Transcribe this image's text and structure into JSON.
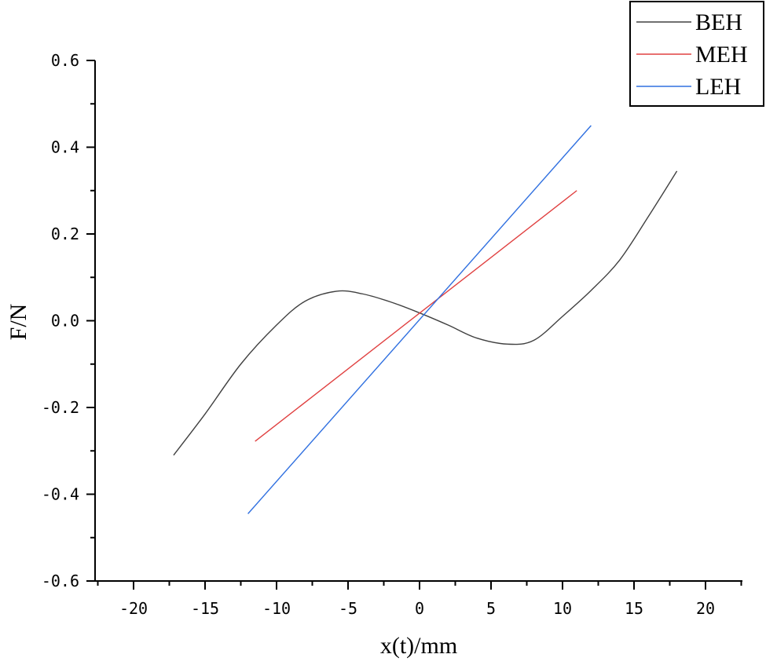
{
  "chart_data": {
    "type": "line",
    "xlabel": "x(t)/mm",
    "ylabel": "F/N",
    "xlim": [
      -23,
      23
    ],
    "ylim": [
      -0.6,
      0.6
    ],
    "x_ticks": [
      -20,
      -15,
      -10,
      -5,
      0,
      5,
      10,
      15,
      20
    ],
    "x_tick_labels": [
      "-20",
      "-15",
      "-10",
      "-5",
      "0",
      "5",
      "10",
      "15",
      "20"
    ],
    "y_ticks": [
      -0.6,
      -0.4,
      -0.2,
      0.0,
      0.2,
      0.4,
      0.6
    ],
    "y_tick_labels": [
      "-0.6",
      "-0.4",
      "-0.2",
      "0.0",
      "0.2",
      "0.4",
      "0.6"
    ],
    "grid": false,
    "legend_position": "top-right",
    "series": [
      {
        "name": "BEH",
        "color": "#404040",
        "x": [
          -17.2,
          -15,
          -12.5,
          -10,
          -8,
          -5.8,
          -4,
          -2,
          0,
          2,
          4,
          6.2,
          8,
          10,
          12,
          14,
          16,
          18
        ],
        "y": [
          -0.31,
          -0.215,
          -0.1,
          -0.01,
          0.045,
          0.068,
          0.062,
          0.043,
          0.018,
          -0.01,
          -0.04,
          -0.054,
          -0.045,
          0.01,
          0.07,
          0.14,
          0.24,
          0.345
        ]
      },
      {
        "name": "MEH",
        "color": "#e04040",
        "x": [
          -11.5,
          11.0
        ],
        "y": [
          -0.278,
          0.3
        ]
      },
      {
        "name": "LEH",
        "color": "#3070e0",
        "x": [
          -12.0,
          12.0
        ],
        "y": [
          -0.445,
          0.45
        ]
      }
    ]
  }
}
